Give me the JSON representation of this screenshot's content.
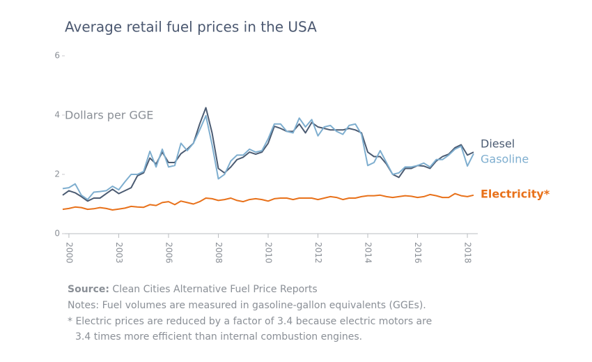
{
  "chart_data": {
    "type": "line",
    "title": "Average retail fuel prices in the USA",
    "y_label": "Dollars per GGE",
    "categories": [
      null,
      "2000",
      null,
      null,
      null,
      null,
      null,
      null,
      null,
      "2003",
      null,
      null,
      null,
      null,
      null,
      null,
      null,
      "2006",
      null,
      null,
      null,
      null,
      null,
      null,
      null,
      "2008",
      null,
      null,
      null,
      null,
      null,
      null,
      null,
      "2010",
      null,
      null,
      null,
      null,
      null,
      null,
      null,
      "2012",
      null,
      null,
      null,
      null,
      null,
      null,
      null,
      "2014",
      null,
      null,
      null,
      null,
      null,
      null,
      null,
      "2016",
      null,
      null,
      null,
      null,
      null,
      null,
      null,
      "2018",
      null
    ],
    "series": [
      {
        "name": "Diesel",
        "color": "#4b5b72",
        "values": [
          1.3,
          1.45,
          1.38,
          1.25,
          1.1,
          1.2,
          1.2,
          1.35,
          1.5,
          1.35,
          1.45,
          1.55,
          1.95,
          2.05,
          2.55,
          2.35,
          2.75,
          2.4,
          2.4,
          2.7,
          2.85,
          3.05,
          3.7,
          4.25,
          3.4,
          2.2,
          2.05,
          2.25,
          2.5,
          2.58,
          2.75,
          2.68,
          2.75,
          3.05,
          3.62,
          3.55,
          3.45,
          3.45,
          3.7,
          3.4,
          3.75,
          3.6,
          3.55,
          3.5,
          3.5,
          3.5,
          3.55,
          3.5,
          3.4,
          2.75,
          2.6,
          2.6,
          2.35,
          2.0,
          1.9,
          2.2,
          2.2,
          2.3,
          2.28,
          2.2,
          2.45,
          2.6,
          2.68,
          2.9,
          3.0,
          2.65,
          2.75
        ]
      },
      {
        "name": "Gasoline",
        "color": "#7eaecf",
        "values": [
          1.52,
          1.55,
          1.68,
          1.3,
          1.15,
          1.4,
          1.42,
          1.45,
          1.6,
          1.48,
          1.75,
          2.0,
          2.0,
          2.1,
          2.78,
          2.25,
          2.85,
          2.25,
          2.3,
          3.05,
          2.8,
          3.05,
          3.5,
          3.98,
          3.0,
          1.85,
          2.0,
          2.45,
          2.65,
          2.65,
          2.85,
          2.75,
          2.8,
          3.2,
          3.7,
          3.7,
          3.45,
          3.4,
          3.9,
          3.6,
          3.85,
          3.3,
          3.6,
          3.65,
          3.45,
          3.35,
          3.65,
          3.7,
          3.35,
          2.3,
          2.4,
          2.8,
          2.4,
          2.0,
          2.05,
          2.25,
          2.25,
          2.3,
          2.38,
          2.25,
          2.5,
          2.5,
          2.65,
          2.85,
          2.95,
          2.28,
          2.7
        ]
      },
      {
        "name": "Electricity*",
        "color": "#e8711a",
        "values": [
          0.82,
          0.85,
          0.9,
          0.88,
          0.82,
          0.84,
          0.88,
          0.85,
          0.8,
          0.83,
          0.86,
          0.92,
          0.9,
          0.89,
          0.98,
          0.95,
          1.05,
          1.08,
          0.98,
          1.1,
          1.05,
          1.0,
          1.08,
          1.2,
          1.18,
          1.12,
          1.15,
          1.2,
          1.12,
          1.08,
          1.15,
          1.18,
          1.15,
          1.1,
          1.18,
          1.2,
          1.2,
          1.15,
          1.2,
          1.2,
          1.2,
          1.15,
          1.2,
          1.25,
          1.22,
          1.15,
          1.2,
          1.2,
          1.25,
          1.28,
          1.28,
          1.3,
          1.25,
          1.22,
          1.25,
          1.28,
          1.26,
          1.22,
          1.25,
          1.32,
          1.28,
          1.22,
          1.22,
          1.35,
          1.28,
          1.25,
          1.3
        ]
      }
    ],
    "ylim": [
      0,
      6
    ],
    "yticks": [
      0,
      2,
      4,
      6
    ],
    "source_label": "Source:",
    "source_text": "Clean Cities Alternative Fuel Price Reports",
    "notes": [
      "Notes: Fuel volumes are measured in gasoline-gallon equivalents (GGEs).",
      "* Electric prices are reduced by a factor of 3.4 because electric motors are",
      "3.4 times more efficient than internal combustion engines."
    ]
  }
}
